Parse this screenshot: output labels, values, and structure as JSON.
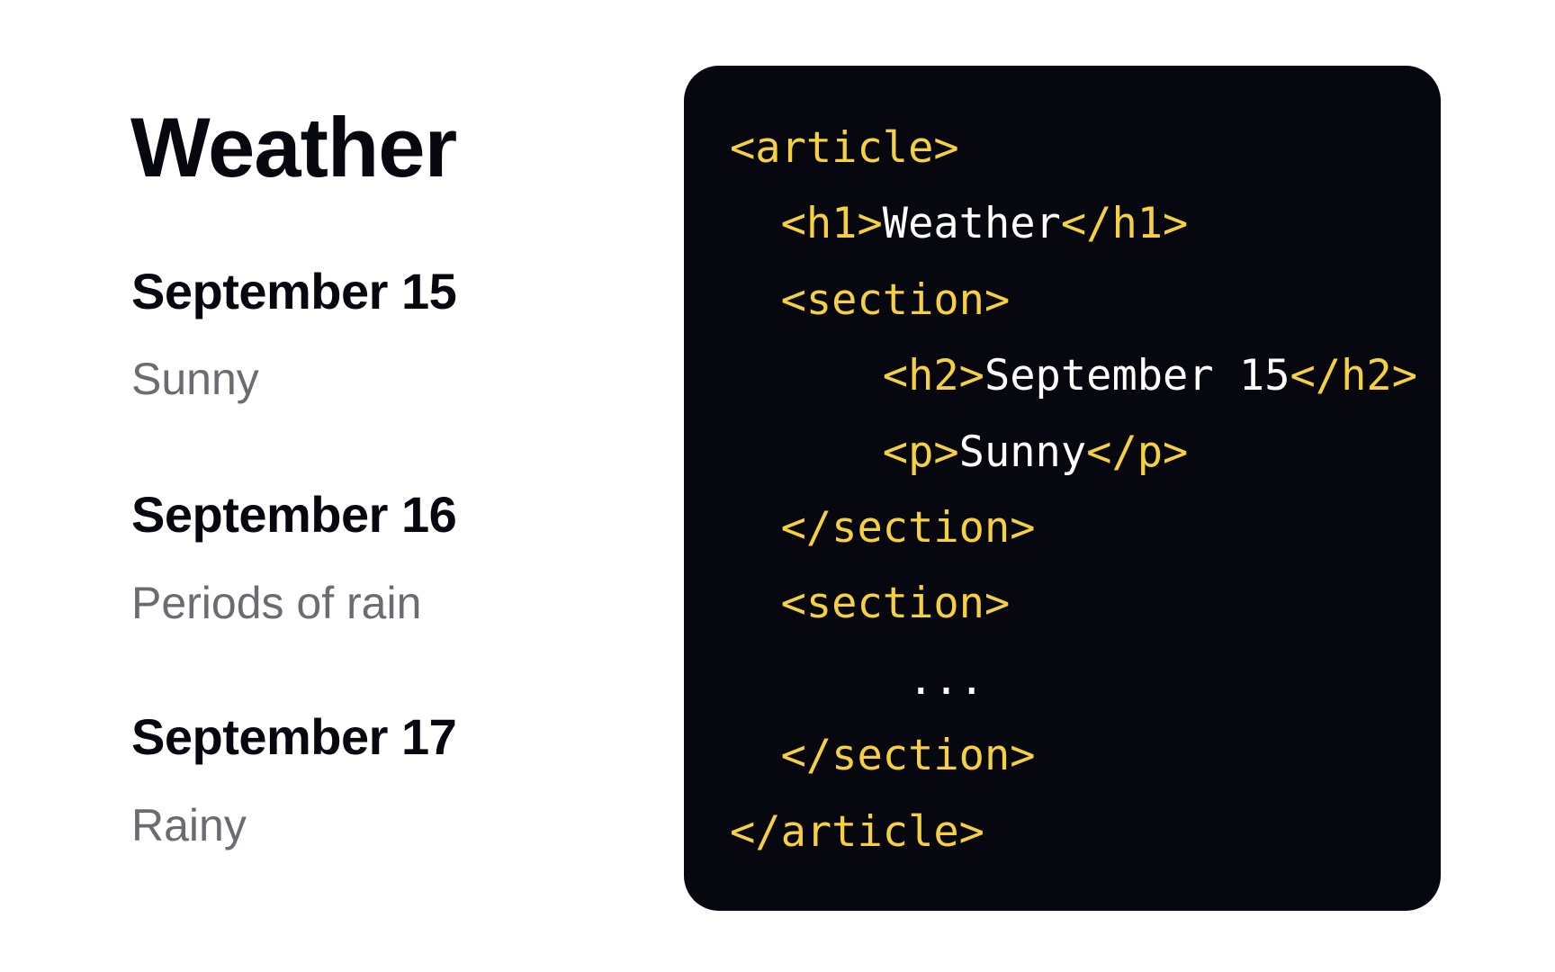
{
  "preview": {
    "title": "Weather",
    "sections": [
      {
        "heading": "September 15",
        "text": "Sunny"
      },
      {
        "heading": "September 16",
        "text": "Periods of rain"
      },
      {
        "heading": "September 17",
        "text": "Rainy"
      }
    ]
  },
  "code": {
    "lines": [
      {
        "indent": "",
        "open": "<article>",
        "text": "",
        "close": ""
      },
      {
        "indent": "  ",
        "open": "<h1>",
        "text": "Weather",
        "close": "</h1>"
      },
      {
        "indent": "  ",
        "open": "<section>",
        "text": "",
        "close": ""
      },
      {
        "indent": "      ",
        "open": "<h2>",
        "text": "September 15",
        "close": "</h2>"
      },
      {
        "indent": "      ",
        "open": "<p>",
        "text": "Sunny",
        "close": "</p>"
      },
      {
        "indent": "  ",
        "open": "</section>",
        "text": "",
        "close": ""
      },
      {
        "indent": "  ",
        "open": "<section>",
        "text": "",
        "close": ""
      },
      {
        "indent": "       ",
        "open": "",
        "text": "...",
        "close": ""
      },
      {
        "indent": "  ",
        "open": "</section>",
        "text": "",
        "close": ""
      },
      {
        "indent": "",
        "open": "</article>",
        "text": "",
        "close": ""
      }
    ]
  },
  "colors": {
    "tag": "#f5d142",
    "text": "#ffffff",
    "background": "#07080f",
    "muted": "#6b6b73"
  }
}
